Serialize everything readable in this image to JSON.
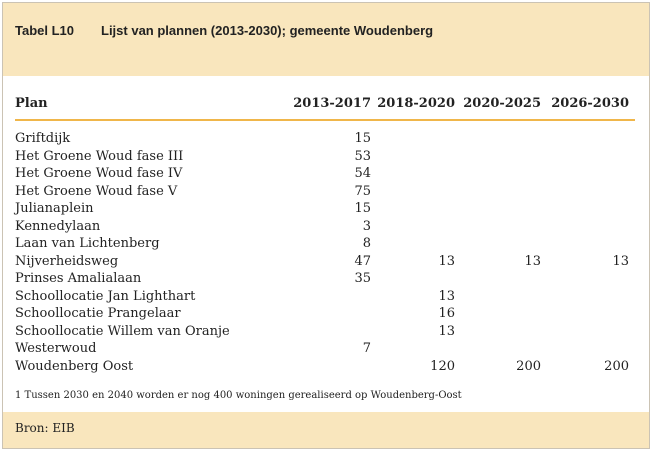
{
  "header": {
    "label": "Tabel L10",
    "title": "Lijst van plannen (2013-2030); gemeente Woudenberg"
  },
  "table": {
    "columns": [
      "Plan",
      "2013-2017",
      "2018-2020",
      "2020-2025",
      "2026-2030"
    ],
    "rows": [
      [
        "Griftdijk",
        "15",
        "",
        "",
        ""
      ],
      [
        "Het Groene Woud fase III",
        "53",
        "",
        "",
        ""
      ],
      [
        "Het Groene Woud fase IV",
        "54",
        "",
        "",
        ""
      ],
      [
        "Het Groene Woud fase V",
        "75",
        "",
        "",
        ""
      ],
      [
        "Julianaplein",
        "15",
        "",
        "",
        ""
      ],
      [
        "Kennedylaan",
        "3",
        "",
        "",
        ""
      ],
      [
        "Laan van Lichtenberg",
        "8",
        "",
        "",
        ""
      ],
      [
        "Nijverheidsweg",
        "47",
        "13",
        "13",
        "13"
      ],
      [
        "Prinses Amalialaan",
        "35",
        "",
        "",
        ""
      ],
      [
        "Schoollocatie Jan Lighthart",
        "",
        "13",
        "",
        ""
      ],
      [
        "Schoollocatie Prangelaar",
        "",
        "16",
        "",
        ""
      ],
      [
        "Schoollocatie Willem van Oranje",
        "",
        "13",
        "",
        ""
      ],
      [
        "Westerwoud",
        "7",
        "",
        "",
        ""
      ],
      [
        "Woudenberg Oost",
        "",
        "120",
        "200",
        "200"
      ]
    ]
  },
  "footnote": "1 Tussen 2030 en 2040 worden er nog 400 woningen gerealiseerd op Woudenberg-Oost",
  "source": "Bron: EIB"
}
